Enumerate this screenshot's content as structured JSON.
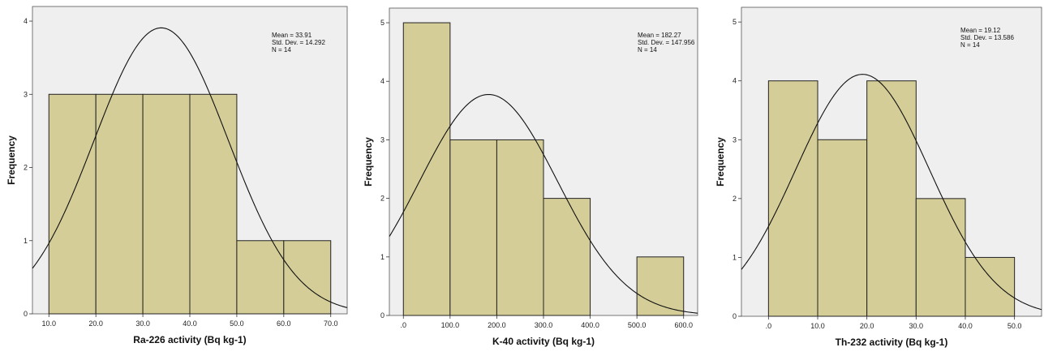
{
  "chart_data": [
    {
      "type": "bar",
      "bar_fill": "#d4cd98",
      "plot_bg": "#efefef",
      "ylabel": "Frequency",
      "xlabel": "Ra-226 activity (Bq kg-1)",
      "bins": [
        {
          "from": 10,
          "to": 20,
          "count": 3
        },
        {
          "from": 20,
          "to": 30,
          "count": 3
        },
        {
          "from": 30,
          "to": 40,
          "count": 3
        },
        {
          "from": 40,
          "to": 50,
          "count": 3
        },
        {
          "from": 50,
          "to": 60,
          "count": 1
        },
        {
          "from": 60,
          "to": 70,
          "count": 1
        }
      ],
      "xlim": [
        6.5,
        73.5
      ],
      "ylim": [
        0,
        4.2
      ],
      "x_ticks": [
        10,
        20,
        30,
        40,
        50,
        60,
        70
      ],
      "x_tick_labels": [
        "10.0",
        "20.0",
        "30.0",
        "40.0",
        "50.0",
        "60.0",
        "70.0"
      ],
      "y_ticks": [
        0,
        1,
        2,
        3,
        4
      ],
      "y_tick_labels": [
        "0",
        "1",
        "2",
        "3",
        "4"
      ],
      "curve": {
        "mean": 33.91,
        "sd": 14.292,
        "n": 14,
        "bin_width": 10
      },
      "stats": [
        "Mean = 33.91",
        "Std. Dev. = 14.292",
        "N = 14"
      ]
    },
    {
      "type": "bar",
      "bar_fill": "#d4cd98",
      "plot_bg": "#efefef",
      "ylabel": "Frequency",
      "xlabel": "K-40 activity (Bq kg-1)",
      "bins": [
        {
          "from": 0,
          "to": 100,
          "count": 5
        },
        {
          "from": 100,
          "to": 200,
          "count": 3
        },
        {
          "from": 200,
          "to": 300,
          "count": 3
        },
        {
          "from": 300,
          "to": 400,
          "count": 2
        },
        {
          "from": 400,
          "to": 500,
          "count": 0
        },
        {
          "from": 500,
          "to": 600,
          "count": 1
        }
      ],
      "xlim": [
        -30,
        630
      ],
      "ylim": [
        0,
        5.25
      ],
      "x_ticks": [
        0,
        100,
        200,
        300,
        400,
        500,
        600
      ],
      "x_tick_labels": [
        ".0",
        "100.0",
        "200.0",
        "300.0",
        "400.0",
        "500.0",
        "600.0"
      ],
      "y_ticks": [
        0,
        1,
        2,
        3,
        4,
        5
      ],
      "y_tick_labels": [
        "0",
        "1",
        "2",
        "3",
        "4",
        "5"
      ],
      "curve": {
        "mean": 182.27,
        "sd": 147.956,
        "n": 14,
        "bin_width": 100
      },
      "stats": [
        "Mean = 182.27",
        "Std. Dev. = 147.956",
        "N = 14"
      ]
    },
    {
      "type": "bar",
      "bar_fill": "#d4cd98",
      "plot_bg": "#efefef",
      "ylabel": "Frequency",
      "xlabel": "Th-232 activity (Bq kg-1)",
      "bins": [
        {
          "from": 0,
          "to": 10,
          "count": 4
        },
        {
          "from": 10,
          "to": 20,
          "count": 3
        },
        {
          "from": 20,
          "to": 30,
          "count": 4
        },
        {
          "from": 30,
          "to": 40,
          "count": 2
        },
        {
          "from": 40,
          "to": 50,
          "count": 1
        }
      ],
      "xlim": [
        -5.5,
        55.5
      ],
      "ylim": [
        0,
        5.25
      ],
      "x_ticks": [
        0,
        10,
        20,
        30,
        40,
        50
      ],
      "x_tick_labels": [
        ".0",
        "10.0",
        "20.0",
        "30.0",
        "40.0",
        "50.0"
      ],
      "y_ticks": [
        0,
        1,
        2,
        3,
        4,
        5
      ],
      "y_tick_labels": [
        "0",
        "1",
        "2",
        "3",
        "4",
        "5"
      ],
      "curve": {
        "mean": 19.12,
        "sd": 13.586,
        "n": 14,
        "bin_width": 10
      },
      "stats": [
        "Mean = 19.12",
        "Std. Dev. = 13.586",
        "N = 14"
      ]
    }
  ]
}
